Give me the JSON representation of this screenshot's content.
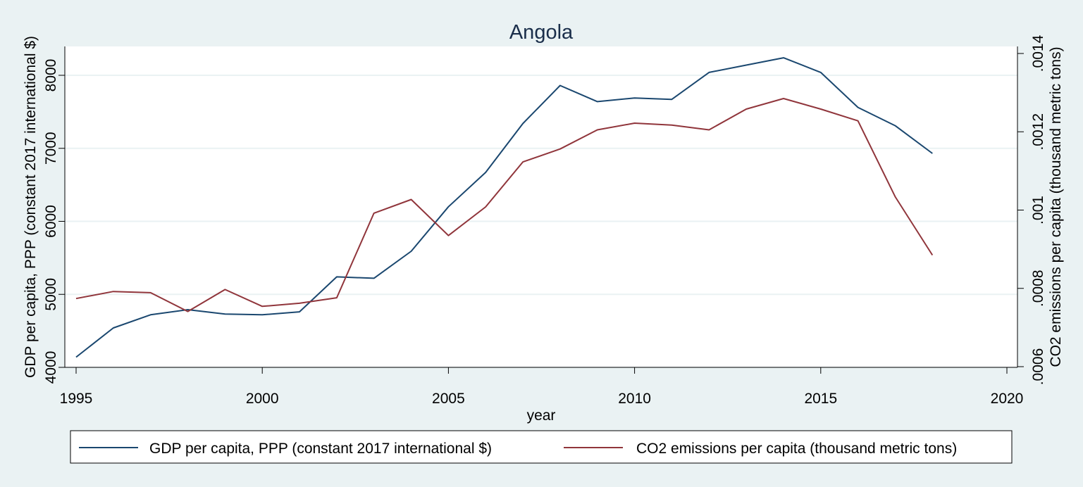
{
  "chart_data": {
    "type": "line",
    "title": "Angola",
    "xlabel": "year",
    "ylabel_left": "GDP per capita, PPP (constant 2017 international $)",
    "ylabel_right": "CO2 emissions per capita (thousand metric tons)",
    "xlim": [
      1995,
      2020
    ],
    "ylim_left": [
      4000,
      8400
    ],
    "ylim_right": [
      0.0006,
      0.00142
    ],
    "x_ticks": [
      "1995",
      "2000",
      "2005",
      "2010",
      "2015",
      "2020"
    ],
    "y_left_ticks": [
      "4000",
      "5000",
      "6000",
      "7000",
      "8000"
    ],
    "y_right_ticks": [
      ".0006",
      ".0008",
      ".001",
      ".0012",
      ".0014"
    ],
    "grid": true,
    "legend_position": "bottom",
    "x": [
      1995,
      1996,
      1997,
      1998,
      1999,
      2000,
      2001,
      2002,
      2003,
      2004,
      2005,
      2006,
      2007,
      2008,
      2009,
      2010,
      2011,
      2012,
      2013,
      2014,
      2015,
      2016,
      2017,
      2018
    ],
    "series": [
      {
        "name": "GDP per capita, PPP (constant 2017 international $)",
        "axis": "left",
        "color": "#1a476f",
        "values": [
          4140,
          4540,
          4720,
          4790,
          4730,
          4720,
          4760,
          5240,
          5220,
          5590,
          6200,
          6670,
          7340,
          7860,
          7640,
          7690,
          7670,
          8040,
          8140,
          8240,
          8040,
          7560,
          7310,
          6930
        ]
      },
      {
        "name": "CO2 emissions per capita (thousand metric tons)",
        "axis": "right",
        "color": "#90353b",
        "values": [
          0.000774,
          0.000792,
          0.000789,
          0.000741,
          0.000797,
          0.000754,
          0.000762,
          0.000776,
          0.000992,
          0.001027,
          0.000935,
          0.001008,
          0.001123,
          0.001156,
          0.001205,
          0.001222,
          0.001217,
          0.001205,
          0.001258,
          0.001285,
          0.001258,
          0.001228,
          0.001034,
          0.000885
        ]
      }
    ]
  }
}
